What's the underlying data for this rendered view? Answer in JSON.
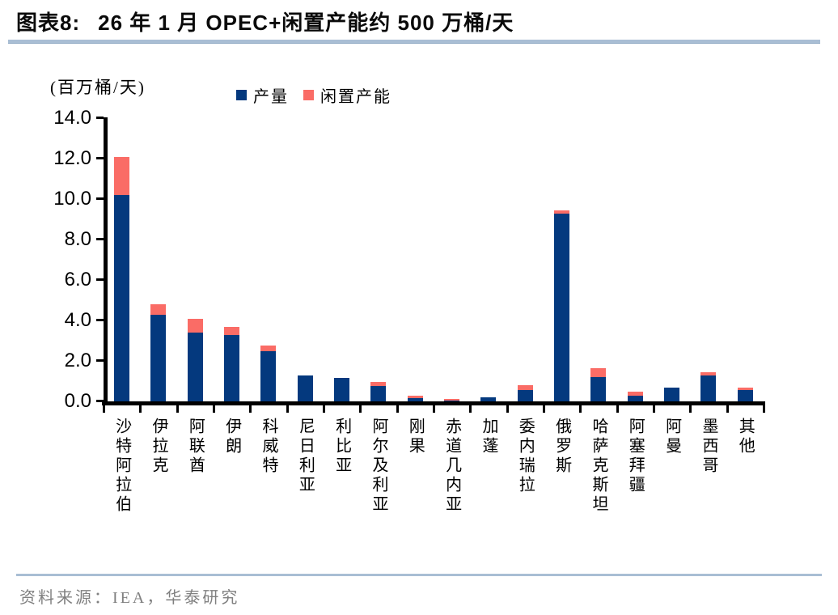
{
  "header": {
    "chart_label": "图表8:",
    "title": "26 年 1 月 OPEC+闲置产能约 500 万桶/天"
  },
  "chart_data": {
    "type": "bar",
    "stacked": true,
    "title": "26 年 1 月 OPEC+闲置产能约 500 万桶/天",
    "unit_label": "(百万桶/天)",
    "ylabel": "百万桶/天",
    "ylim": [
      0,
      14
    ],
    "ytick_step": 2,
    "ytick_labels": [
      "14.0",
      "12.0",
      "10.0",
      "8.0",
      "6.0",
      "4.0",
      "2.0",
      "0.0"
    ],
    "grid": false,
    "legend_position": "top",
    "categories": [
      "沙特阿拉伯",
      "伊拉克",
      "阿联酋",
      "伊朗",
      "科威特",
      "尼日利亚",
      "利比亚",
      "阿尔及利亚",
      "刚果",
      "赤道几内亚",
      "加蓬",
      "委内瑞拉",
      "俄罗斯",
      "哈萨克斯坦",
      "阿塞拜疆",
      "阿曼",
      "墨西哥",
      "其他"
    ],
    "series": [
      {
        "name": "产量",
        "color": "#04397E",
        "values": [
          10.2,
          4.3,
          3.4,
          3.3,
          2.5,
          1.3,
          1.15,
          0.75,
          0.15,
          0.05,
          0.2,
          0.55,
          9.3,
          1.2,
          0.3,
          0.7,
          1.3,
          0.55
        ]
      },
      {
        "name": "闲置产能",
        "color": "#FA6C66",
        "values": [
          1.9,
          0.5,
          0.7,
          0.4,
          0.25,
          0,
          0,
          0.2,
          0.15,
          0.08,
          0,
          0.25,
          0.15,
          0.45,
          0.2,
          0,
          0.15,
          0.15
        ]
      }
    ]
  },
  "footer": {
    "source": "资料来源：IEA，华泰研究"
  },
  "colors": {
    "production": "#04397E",
    "spare": "#FA6C66",
    "axis": "#000000",
    "divider": "#A9BED4",
    "footer_text": "#808080"
  }
}
